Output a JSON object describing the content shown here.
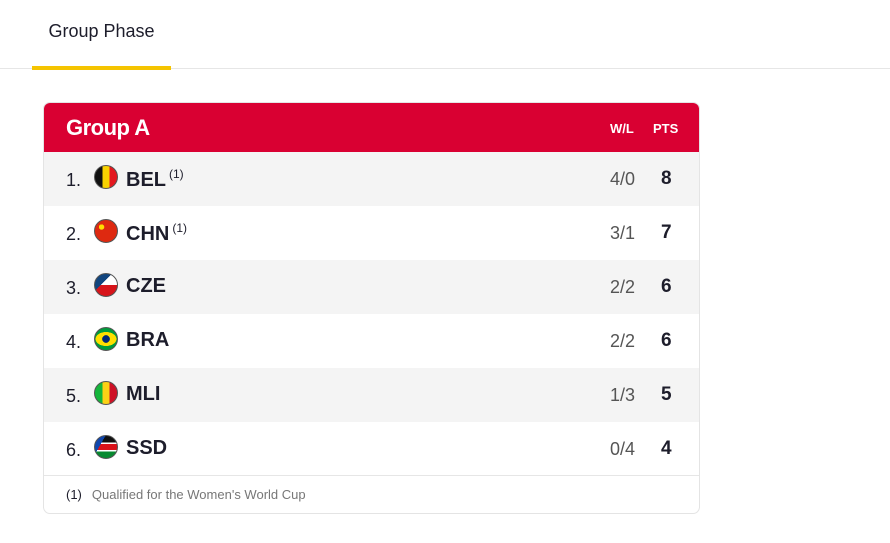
{
  "tabs": [
    {
      "label": "Group Phase",
      "active": true
    }
  ],
  "group": {
    "title": "Group A",
    "columns": {
      "wl": "W/L",
      "pts": "PTS"
    },
    "rows": [
      {
        "rank": "1.",
        "team": "BEL",
        "note": "(1)",
        "wl": "4/0",
        "pts": "8",
        "flag": "belgium-flag-icon"
      },
      {
        "rank": "2.",
        "team": "CHN",
        "note": "(1)",
        "wl": "3/1",
        "pts": "7",
        "flag": "china-flag-icon"
      },
      {
        "rank": "3.",
        "team": "CZE",
        "note": "",
        "wl": "2/2",
        "pts": "6",
        "flag": "czechia-flag-icon"
      },
      {
        "rank": "4.",
        "team": "BRA",
        "note": "",
        "wl": "2/2",
        "pts": "6",
        "flag": "brazil-flag-icon"
      },
      {
        "rank": "5.",
        "team": "MLI",
        "note": "",
        "wl": "1/3",
        "pts": "5",
        "flag": "mali-flag-icon"
      },
      {
        "rank": "6.",
        "team": "SSD",
        "note": "",
        "wl": "0/4",
        "pts": "4",
        "flag": "south-sudan-flag-icon"
      }
    ],
    "footnote": {
      "marker": "(1)",
      "text": "Qualified for the Women's World Cup"
    }
  },
  "colors": {
    "header": "#d90032",
    "tab_indicator": "#f5c400"
  }
}
